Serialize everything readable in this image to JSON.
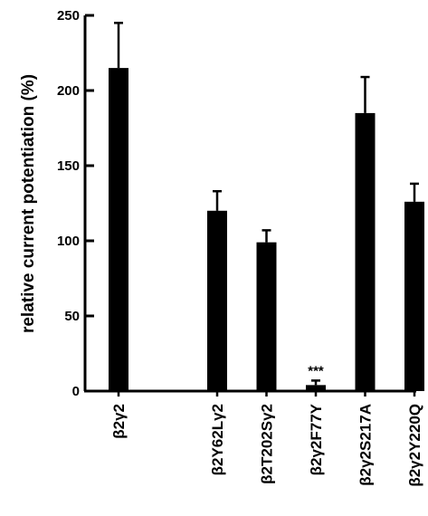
{
  "chart_data": {
    "type": "bar",
    "ylabel": "relative current potentiation (%)",
    "xlabel": "",
    "ylim": [
      0,
      250
    ],
    "yticks": [
      0,
      50,
      100,
      150,
      200,
      250
    ],
    "ytick_labels": [
      "0",
      "50",
      "100",
      "150",
      "200",
      "250"
    ],
    "categories": [
      "β2γ2",
      "β2Y62Lγ2",
      "β2T202Sγ2",
      "β2γ2F77Y",
      "β2γ2S217A",
      "β2γ2Y220Q"
    ],
    "slot_index": [
      0,
      2,
      3,
      4,
      5,
      6
    ],
    "values": [
      215,
      120,
      99,
      4,
      185,
      126
    ],
    "errors": [
      30,
      13,
      8,
      3,
      24,
      12
    ],
    "annotations": [
      {
        "category": "β2γ2F77Y",
        "text": "***"
      }
    ],
    "bar_color": "#000000"
  }
}
